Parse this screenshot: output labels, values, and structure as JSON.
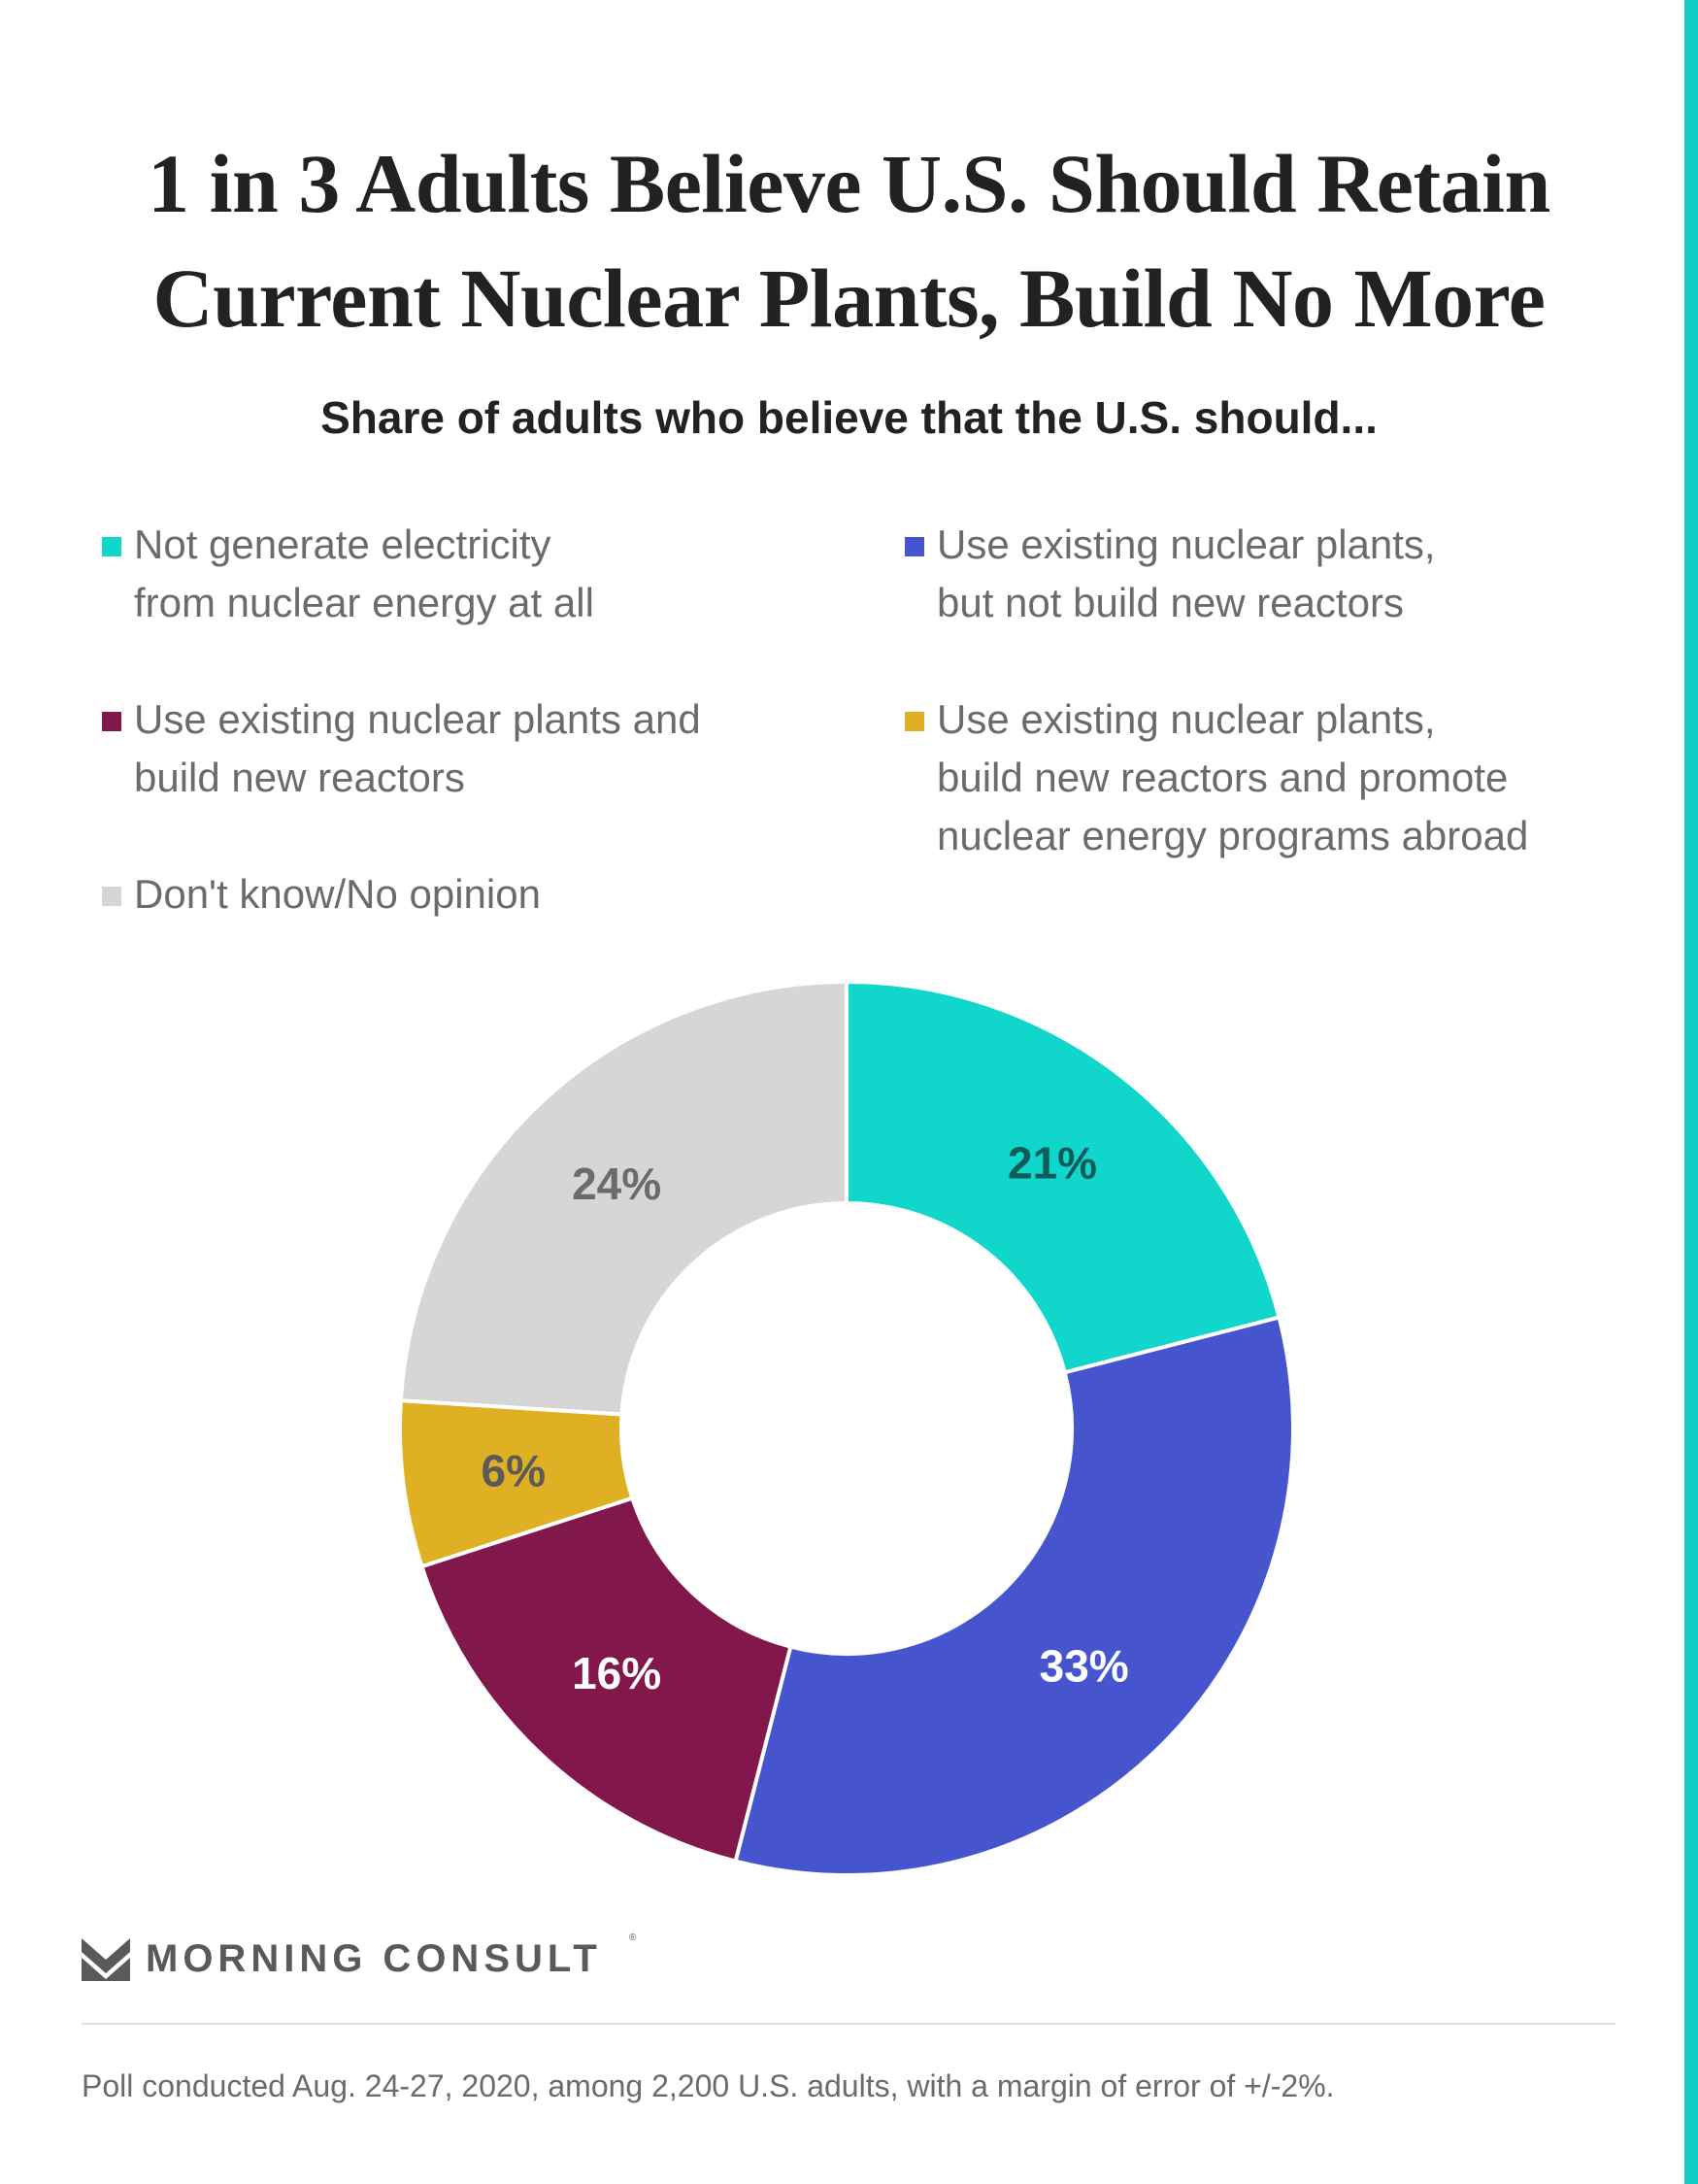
{
  "chart_data": {
    "type": "pie",
    "variant": "donut",
    "title": "1 in 3 Adults Believe U.S. Should Retain Current Nuclear Plants, Build No More",
    "subtitle": "Share of adults who believe that the U.S. should...",
    "slices": [
      {
        "label": [
          "Not generate electricity",
          "from nuclear energy at all"
        ],
        "value": 21,
        "value_label": "21%",
        "color": "#10d6cc",
        "label_color": "#0e5c5a"
      },
      {
        "label": [
          "Use existing nuclear plants,",
          "but not build new reactors"
        ],
        "value": 33,
        "value_label": "33%",
        "color": "#4655cd",
        "label_color": "#ffffff"
      },
      {
        "label": [
          "Use existing nuclear plants and",
          "build new reactors"
        ],
        "value": 16,
        "value_label": "16%",
        "color": "#82174b",
        "label_color": "#ffffff"
      },
      {
        "label": [
          "Use existing nuclear plants,",
          "build new reactors and promote",
          "nuclear energy programs abroad"
        ],
        "value": 6,
        "value_label": "6%",
        "color": "#e0b024",
        "label_color": "#5a5a5a"
      },
      {
        "label": [
          "Don't know/No opinion"
        ],
        "value": 24,
        "value_label": "24%",
        "color": "#d6d6d6",
        "label_color": "#6b6b6b"
      }
    ],
    "start_angle": "top, clockwise",
    "legend_position": "top"
  },
  "branding": {
    "logo_text": "MORNING CONSULT",
    "registered_mark": "®"
  },
  "footnote": "Poll conducted Aug. 24-27, 2020, among 2,200 U.S. adults, with a margin of error of +/-2%."
}
